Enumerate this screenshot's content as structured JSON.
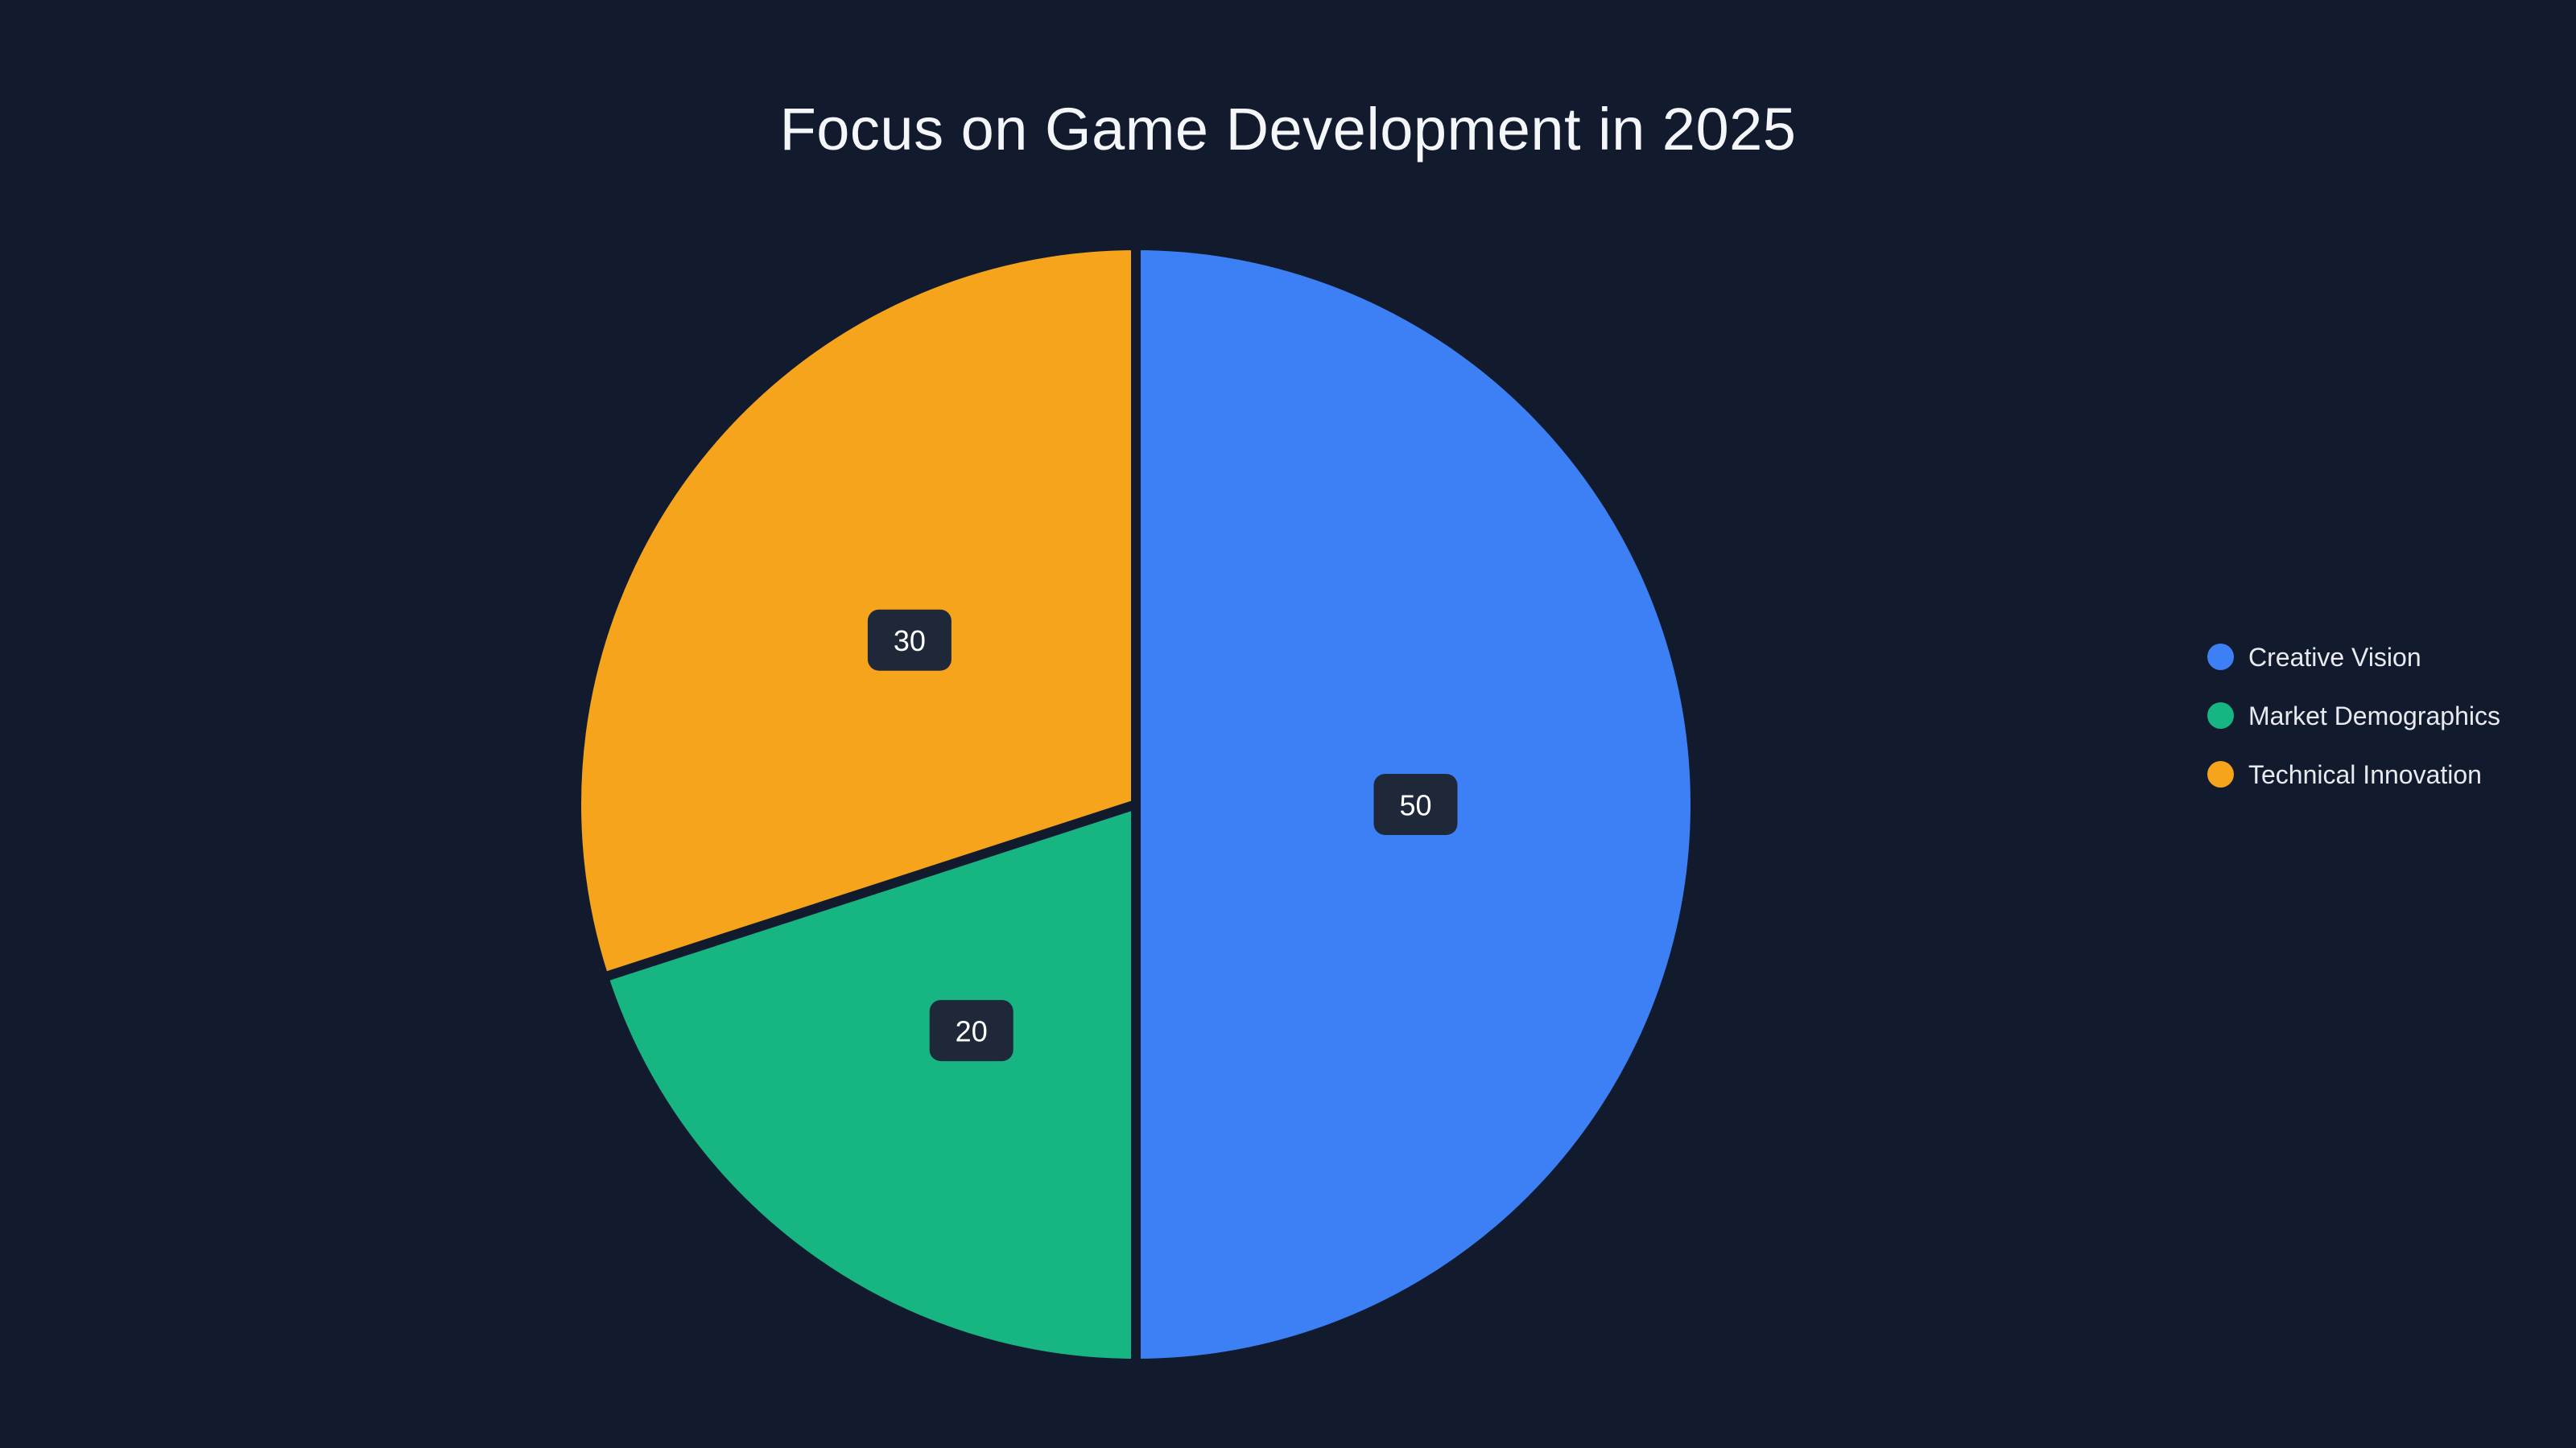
{
  "page": {
    "background": "#121b2e",
    "title": "Focus on Game Development in 2025",
    "title_color": "#f4f6f9"
  },
  "chart_data": {
    "type": "pie",
    "title": "Focus on Game Development in 2025",
    "series": [
      {
        "name": "Creative Vision",
        "value": 50,
        "color": "#3d80f6",
        "label": "50"
      },
      {
        "name": "Market Demographics",
        "value": 20,
        "color": "#17b581",
        "label": "20"
      },
      {
        "name": "Technical Innovation",
        "value": 30,
        "color": "#f5a41c",
        "label": "30"
      }
    ],
    "total": 100,
    "start_angle_deg": 0,
    "direction": "clockwise",
    "legend_position": "right",
    "label_box_color": "#1e2838",
    "label_text_color": "#ffffff",
    "slice_gap_color": "#121b2e"
  },
  "legend": {
    "items": [
      {
        "label": "Creative Vision",
        "color": "#3d80f6"
      },
      {
        "label": "Market Demographics",
        "color": "#17b581"
      },
      {
        "label": "Technical Innovation",
        "color": "#f5a41c"
      }
    ],
    "text_color": "#e8eaee"
  }
}
